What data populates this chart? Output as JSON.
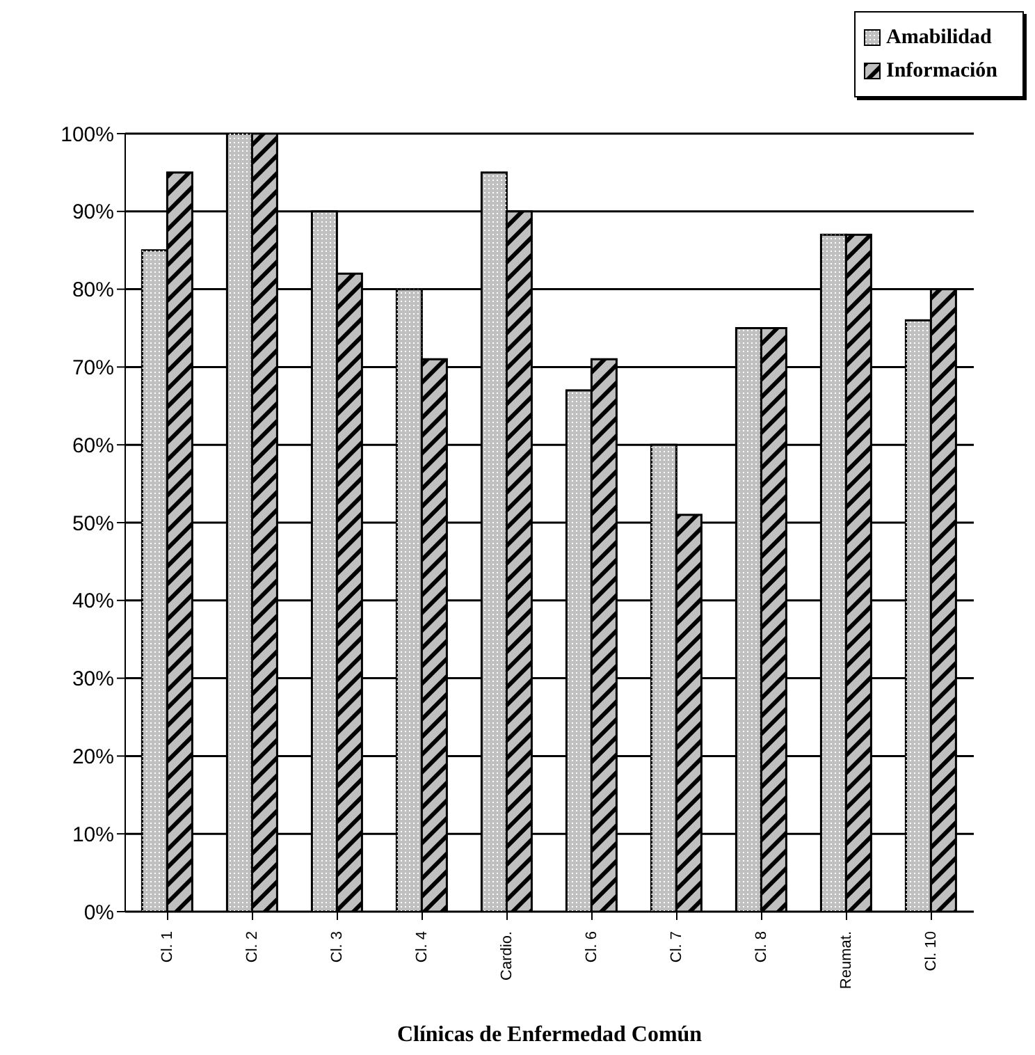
{
  "chart_data": {
    "type": "bar",
    "xlabel": "Clínicas de Enfermedad Común",
    "categories": [
      "Cl. 1",
      "Cl. 2",
      "Cl. 3",
      "Cl. 4",
      "Cardio.",
      "Cl. 6",
      "Cl. 7",
      "Cl. 8",
      "Reumat.",
      "Cl. 10"
    ],
    "series": [
      {
        "name": "Amabilidad",
        "color": "#c0c0c0",
        "values": [
          85,
          100,
          90,
          80,
          95,
          67,
          60,
          75,
          87,
          76
        ]
      },
      {
        "name": "Información",
        "color": "#c0c0c0",
        "values": [
          95,
          100,
          82,
          71,
          90,
          71,
          51,
          75,
          87,
          80
        ]
      }
    ],
    "ylim": [
      0,
      100
    ],
    "yticks": [
      {
        "value": 0,
        "label": "0%"
      },
      {
        "value": 10,
        "label": "10%"
      },
      {
        "value": 20,
        "label": "20%"
      },
      {
        "value": 30,
        "label": "30%"
      },
      {
        "value": 40,
        "label": "40%"
      },
      {
        "value": 50,
        "label": "50%"
      },
      {
        "value": 60,
        "label": "60%"
      },
      {
        "value": 70,
        "label": "70%"
      },
      {
        "value": 80,
        "label": "80%"
      },
      {
        "value": 90,
        "label": "90%"
      },
      {
        "value": 100,
        "label": "100%"
      }
    ],
    "grid": "y",
    "legend": "top right"
  }
}
